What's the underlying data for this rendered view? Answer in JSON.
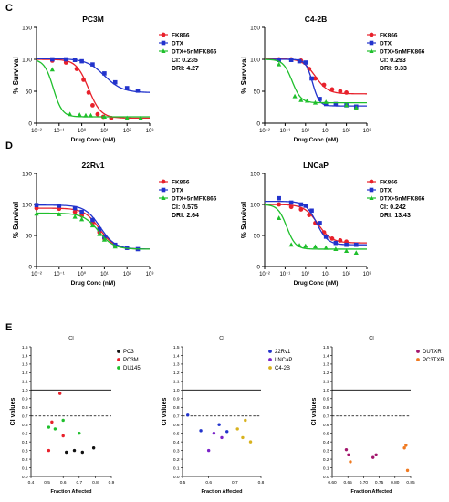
{
  "panel_labels": {
    "c": "C",
    "d": "D",
    "e": "E"
  },
  "colors": {
    "red": "#e8212b",
    "blue": "#2233cc",
    "green": "#1fbf2c",
    "black": "#111111",
    "purple": "#7a22c8",
    "gold": "#d8b21e",
    "magenta": "#a3166d",
    "orange": "#f07a21"
  },
  "chart_data": [
    {
      "id": "pc3m",
      "type": "line",
      "title": "PC3M",
      "xlabel": "Drug Conc (nM)",
      "ylabel": "% Survival",
      "xscale": "log",
      "xlim": [
        0.01,
        1000
      ],
      "ylim": [
        0,
        150
      ],
      "xticks": [
        "10⁻²",
        "10⁻¹",
        "10⁰",
        "10¹",
        "10²",
        "10³"
      ],
      "yticks": [
        "0",
        "50",
        "100",
        "150"
      ],
      "series": [
        {
          "name": "FK866",
          "color": "red",
          "marker": "circle",
          "x": [
            0.05,
            0.2,
            0.6,
            1.2,
            2,
            3,
            5,
            9,
            20
          ],
          "y": [
            98,
            95,
            85,
            68,
            48,
            28,
            14,
            10,
            8
          ],
          "fit": {
            "top": 100,
            "bottom": 8,
            "ec50": 2.0,
            "hill": 1.6
          }
        },
        {
          "name": "DTX",
          "color": "blue",
          "marker": "square",
          "x": [
            0.05,
            0.2,
            0.5,
            1,
            3,
            10,
            30,
            100,
            300
          ],
          "y": [
            100,
            100,
            99,
            97,
            92,
            78,
            64,
            55,
            51
          ],
          "fit": {
            "top": 101,
            "bottom": 48,
            "ec50": 10,
            "hill": 1.1
          }
        },
        {
          "name": "DTX+5nMFK866",
          "color": "green",
          "marker": "triangle",
          "x": [
            0.05,
            0.3,
            0.8,
            1.5,
            2.5,
            10,
            100,
            400
          ],
          "y": [
            84,
            14,
            13,
            12,
            12,
            10,
            8,
            8
          ],
          "fit": {
            "top": 100,
            "bottom": 10,
            "ec50": 0.055,
            "hill": 2.2
          }
        }
      ],
      "annotations": [
        "CI: 0.235",
        "DRI: 4.27"
      ]
    },
    {
      "id": "c42b",
      "type": "line",
      "title": "C4-2B",
      "xlabel": "Drug Conc (nM)",
      "ylabel": "% Survival",
      "xscale": "log",
      "xlim": [
        0.01,
        1000
      ],
      "ylim": [
        0,
        150
      ],
      "xticks": [
        "10⁻²",
        "10⁻¹",
        "10⁰",
        "10¹",
        "10²",
        "10³"
      ],
      "yticks": [
        "0",
        "50",
        "100",
        "150"
      ],
      "series": [
        {
          "name": "FK866",
          "color": "red",
          "marker": "circle",
          "x": [
            0.05,
            0.2,
            0.6,
            1.5,
            3,
            8,
            20,
            50,
            100
          ],
          "y": [
            100,
            100,
            98,
            85,
            70,
            60,
            53,
            50,
            48
          ],
          "fit": {
            "top": 101,
            "bottom": 46,
            "ec50": 3.0,
            "hill": 1.4
          }
        },
        {
          "name": "DTX",
          "color": "blue",
          "marker": "square",
          "x": [
            0.05,
            0.2,
            0.5,
            1,
            2,
            5,
            10,
            30,
            100,
            300
          ],
          "y": [
            99,
            99,
            97,
            95,
            70,
            38,
            30,
            30,
            28,
            26
          ],
          "fit": {
            "top": 100,
            "bottom": 27,
            "ec50": 2.2,
            "hill": 2.6
          }
        },
        {
          "name": "DTX+5nMFK866",
          "color": "green",
          "marker": "triangle",
          "x": [
            0.05,
            0.3,
            0.6,
            1.2,
            3,
            10,
            100,
            300
          ],
          "y": [
            92,
            42,
            36,
            35,
            32,
            33,
            28,
            24
          ],
          "fit": {
            "top": 100,
            "bottom": 32,
            "ec50": 0.22,
            "hill": 2.0
          }
        }
      ],
      "annotations": [
        "CI: 0.293",
        "DRI: 9.33"
      ]
    },
    {
      "id": "r22rv1",
      "type": "line",
      "title": "22Rv1",
      "xlabel": "Drug Conc (nM)",
      "ylabel": "% Survival",
      "xscale": "log",
      "xlim": [
        0.01,
        1000
      ],
      "ylim": [
        0,
        150
      ],
      "xticks": [
        "10⁻²",
        "10⁻¹",
        "10⁰",
        "10¹",
        "10²",
        "10³"
      ],
      "yticks": [
        "0",
        "50",
        "100",
        "150"
      ],
      "series": [
        {
          "name": "FK866",
          "color": "red",
          "marker": "circle",
          "x": [
            0.01,
            0.1,
            0.5,
            1,
            3,
            6,
            10,
            30,
            100
          ],
          "y": [
            94,
            93,
            88,
            82,
            70,
            55,
            45,
            33,
            30
          ],
          "fit": {
            "top": 94,
            "bottom": 28,
            "ec50": 6.0,
            "hill": 1.3
          }
        },
        {
          "name": "DTX",
          "color": "blue",
          "marker": "square",
          "x": [
            0.01,
            0.1,
            0.5,
            1,
            3,
            6,
            10,
            30,
            100,
            300
          ],
          "y": [
            99,
            98,
            94,
            88,
            75,
            60,
            48,
            35,
            30,
            28
          ],
          "fit": {
            "top": 99,
            "bottom": 28,
            "ec50": 6.5,
            "hill": 1.3
          }
        },
        {
          "name": "DTX+5nMFK866",
          "color": "green",
          "marker": "triangle",
          "x": [
            0.01,
            0.1,
            0.5,
            1,
            3,
            6,
            10,
            30
          ],
          "y": [
            85,
            84,
            80,
            76,
            66,
            52,
            43,
            32
          ],
          "fit": {
            "top": 86,
            "bottom": 28,
            "ec50": 5.5,
            "hill": 1.3
          }
        }
      ],
      "annotations": [
        "CI: 0.575",
        "DRI: 2.64"
      ]
    },
    {
      "id": "lncap",
      "type": "line",
      "title": "LNCaP",
      "xlabel": "Drug Conc (nM)",
      "ylabel": "% Survival",
      "xscale": "log",
      "xlim": [
        0.01,
        1000
      ],
      "ylim": [
        0,
        150
      ],
      "xticks": [
        "10⁻²",
        "10⁻¹",
        "10⁰",
        "10¹",
        "10²",
        "10³"
      ],
      "yticks": [
        "0",
        "50",
        "100",
        "150"
      ],
      "series": [
        {
          "name": "FK866",
          "color": "red",
          "marker": "circle",
          "x": [
            0.05,
            0.2,
            0.6,
            1.5,
            3,
            8,
            20,
            50,
            100
          ],
          "y": [
            100,
            96,
            92,
            83,
            70,
            55,
            45,
            42,
            40
          ],
          "fit": {
            "top": 100,
            "bottom": 38,
            "ec50": 4.0,
            "hill": 1.3
          }
        },
        {
          "name": "DTX",
          "color": "blue",
          "marker": "square",
          "x": [
            0.05,
            0.2,
            0.6,
            1,
            2,
            5,
            10,
            30,
            100,
            300
          ],
          "y": [
            110,
            103,
            100,
            98,
            90,
            70,
            48,
            38,
            35,
            35
          ],
          "fit": {
            "top": 105,
            "bottom": 35,
            "ec50": 3.5,
            "hill": 1.6
          }
        },
        {
          "name": "DTX+5nMFK866",
          "color": "green",
          "marker": "triangle",
          "x": [
            0.05,
            0.2,
            0.5,
            1,
            3,
            10,
            30,
            100,
            300
          ],
          "y": [
            78,
            35,
            34,
            33,
            32,
            30,
            28,
            25,
            22
          ],
          "fit": {
            "top": 100,
            "bottom": 28,
            "ec50": 0.12,
            "hill": 2.0
          }
        }
      ],
      "annotations": [
        "CI: 0.242",
        "DRI: 13.43"
      ]
    },
    {
      "id": "ci1",
      "type": "scatter",
      "title": "CI",
      "xlabel": "Fraction Affected",
      "ylabel": "CI values",
      "xlim": [
        0.4,
        0.9
      ],
      "ylim": [
        0,
        1.5
      ],
      "xticks": [
        "0.4",
        "0.5",
        "0.6",
        "0.7",
        "0.8",
        "0.9"
      ],
      "yticks": [
        "0.0",
        "0.1",
        "0.2",
        "0.3",
        "0.4",
        "0.5",
        "0.6",
        "0.7",
        "0.8",
        "0.9",
        "1.0",
        "1.1",
        "1.2",
        "1.3",
        "1.4",
        "1.5"
      ],
      "hlines": [
        {
          "y": 1.0,
          "style": "solid"
        },
        {
          "y": 0.7,
          "style": "dashed"
        }
      ],
      "series": [
        {
          "name": "PC3",
          "color": "black",
          "x": [
            0.62,
            0.67,
            0.72,
            0.79
          ],
          "y": [
            0.28,
            0.3,
            0.28,
            0.33
          ]
        },
        {
          "name": "PC3M",
          "color": "red",
          "x": [
            0.51,
            0.53,
            0.58,
            0.6
          ],
          "y": [
            0.3,
            0.63,
            0.96,
            0.47
          ]
        },
        {
          "name": "DU145",
          "color": "green",
          "x": [
            0.51,
            0.55,
            0.6,
            0.7
          ],
          "y": [
            0.57,
            0.55,
            0.65,
            0.5
          ]
        }
      ]
    },
    {
      "id": "ci2",
      "type": "scatter",
      "title": "CI",
      "xlabel": "Fraction Affected",
      "ylabel": "CI values",
      "xlim": [
        0.5,
        0.8
      ],
      "ylim": [
        0,
        1.5
      ],
      "xticks": [
        "0.5",
        "0.6",
        "0.7",
        "0.8"
      ],
      "yticks": [
        "0.0",
        "0.1",
        "0.2",
        "0.3",
        "0.4",
        "0.5",
        "0.6",
        "0.7",
        "0.8",
        "0.9",
        "1.0",
        "1.1",
        "1.2",
        "1.3",
        "1.4",
        "1.5"
      ],
      "hlines": [
        {
          "y": 1.0,
          "style": "solid"
        },
        {
          "y": 0.7,
          "style": "dashed"
        }
      ],
      "series": [
        {
          "name": "22Rv1",
          "color": "blue",
          "x": [
            0.52,
            0.57,
            0.64,
            0.67
          ],
          "y": [
            0.71,
            0.53,
            0.6,
            0.52
          ]
        },
        {
          "name": "LNCaP",
          "color": "purple",
          "x": [
            0.6,
            0.62,
            0.65
          ],
          "y": [
            0.3,
            0.5,
            0.45
          ]
        },
        {
          "name": "C4-2B",
          "color": "gold",
          "x": [
            0.71,
            0.73,
            0.74,
            0.76
          ],
          "y": [
            0.55,
            0.45,
            0.65,
            0.4
          ]
        }
      ]
    },
    {
      "id": "ci3",
      "type": "scatter",
      "title": "CI",
      "xlabel": "Fraction Affected",
      "ylabel": "CI values",
      "xlim": [
        0.6,
        0.85
      ],
      "ylim": [
        0,
        1.5
      ],
      "xticks": [
        "0.60",
        "0.65",
        "0.70",
        "0.75",
        "0.80",
        "0.85"
      ],
      "yticks": [
        "0.0",
        "0.1",
        "0.2",
        "0.3",
        "0.4",
        "0.5",
        "0.6",
        "0.7",
        "0.8",
        "0.9",
        "1.0",
        "1.1",
        "1.2",
        "1.3",
        "1.4",
        "1.5"
      ],
      "hlines": [
        {
          "y": 1.0,
          "style": "solid"
        },
        {
          "y": 0.7,
          "style": "dashed"
        }
      ],
      "series": [
        {
          "name": "DUTXR",
          "color": "magenta",
          "x": [
            0.645,
            0.652,
            0.73,
            0.74
          ],
          "y": [
            0.31,
            0.25,
            0.22,
            0.25
          ]
        },
        {
          "name": "PC3TXR",
          "color": "orange",
          "x": [
            0.658,
            0.83,
            0.835,
            0.84
          ],
          "y": [
            0.17,
            0.33,
            0.36,
            0.07
          ]
        }
      ]
    }
  ]
}
